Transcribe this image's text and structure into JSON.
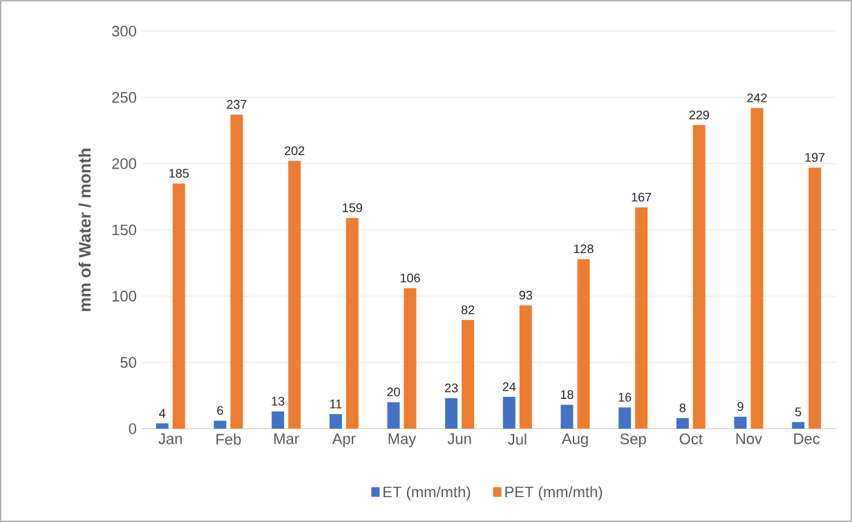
{
  "chart_data": {
    "type": "bar",
    "ylabel": "mm of Water / month",
    "categories": [
      "Jan",
      "Feb",
      "Mar",
      "Apr",
      "May",
      "Jun",
      "Jul",
      "Aug",
      "Sep",
      "Oct",
      "Nov",
      "Dec"
    ],
    "series": [
      {
        "name": "ET (mm/mth)",
        "color": "#4472c4",
        "values": [
          4,
          6,
          13,
          11,
          20,
          23,
          24,
          18,
          16,
          8,
          9,
          5
        ]
      },
      {
        "name": "PET (mm/mth)",
        "color": "#ed7d31",
        "values": [
          185,
          237,
          202,
          159,
          106,
          82,
          93,
          128,
          167,
          229,
          242,
          197
        ]
      }
    ],
    "ylim": [
      0,
      300
    ],
    "yticks": [
      0,
      50,
      100,
      150,
      200,
      250,
      300
    ],
    "grid": "y",
    "legend": "bottom",
    "data_labels": true
  }
}
